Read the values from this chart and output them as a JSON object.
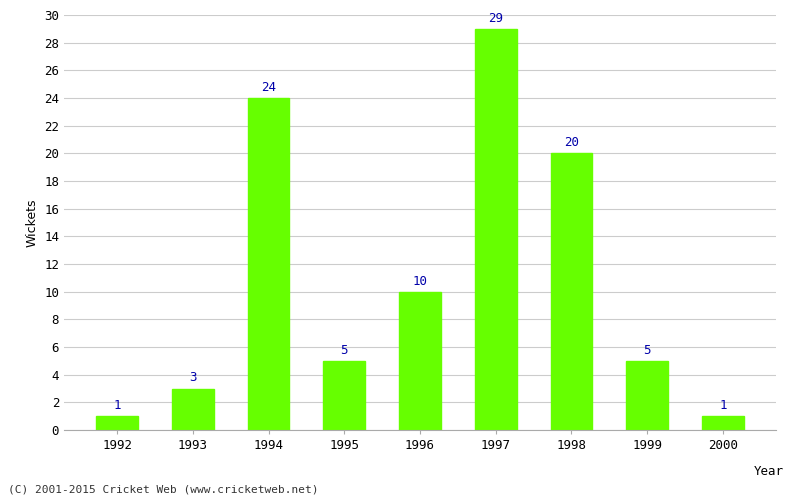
{
  "years": [
    "1992",
    "1993",
    "1994",
    "1995",
    "1996",
    "1997",
    "1998",
    "1999",
    "2000"
  ],
  "values": [
    1,
    3,
    24,
    5,
    10,
    29,
    20,
    5,
    1
  ],
  "bar_color": "#66ff00",
  "bar_edge_color": "#66ff00",
  "label_color": "#0000aa",
  "xlabel": "Year",
  "ylabel": "Wickets",
  "ylim": [
    0,
    30
  ],
  "yticks": [
    0,
    2,
    4,
    6,
    8,
    10,
    12,
    14,
    16,
    18,
    20,
    22,
    24,
    26,
    28,
    30
  ],
  "background_color": "#ffffff",
  "grid_color": "#cccccc",
  "footnote": "(C) 2001-2015 Cricket Web (www.cricketweb.net)",
  "label_fontsize": 9,
  "axis_label_fontsize": 9,
  "tick_fontsize": 9,
  "footnote_fontsize": 8,
  "bar_width": 0.55
}
